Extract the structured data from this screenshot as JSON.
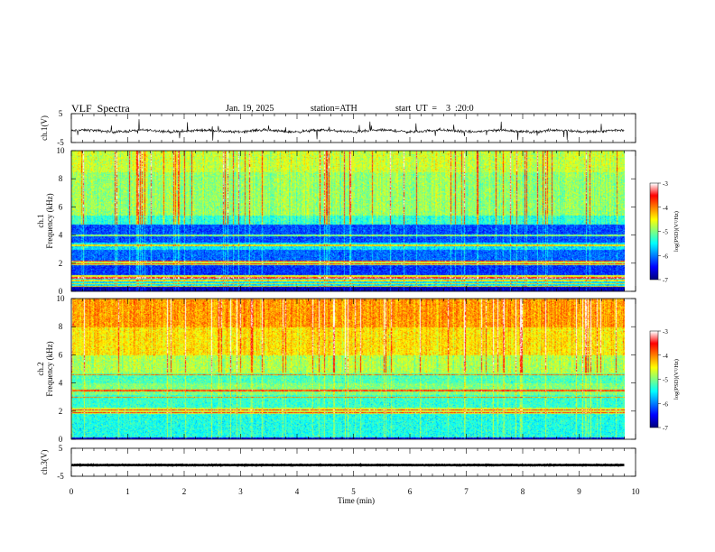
{
  "header": {
    "title": "VLF  Spectra",
    "date": "Jan. 19, 2025",
    "station": "station=ATH",
    "start_ut": "start  UT  =    3  :20:0"
  },
  "colors": {
    "jet": [
      "#000080",
      "#0000ff",
      "#0080ff",
      "#00ffff",
      "#80ff80",
      "#ffff00",
      "#ff8000",
      "#ff0000",
      "#ffffff"
    ],
    "waveform": "#000000",
    "axis": "#000000"
  },
  "chart_data": [
    {
      "type": "line",
      "panel": "ch1-waveform",
      "ylabel": "ch.1(V)",
      "yticks": [
        "5",
        "-5"
      ],
      "ylim": [
        -5,
        5
      ],
      "xlim": [
        0,
        10
      ],
      "trace_extent_min": [
        0,
        9.8
      ],
      "trace_level_V": -1
    },
    {
      "type": "heatmap",
      "panel": "ch1-spectrogram",
      "ylabel": "ch.1\nFrequency (kHz)",
      "ylabel_lines": [
        "ch.1",
        "Frequency  (kHz)"
      ],
      "yticks": [
        "0",
        "2",
        "4",
        "6",
        "8",
        "10"
      ],
      "ylim": [
        0,
        10
      ],
      "xlim": [
        0,
        10
      ],
      "data_extent_min": [
        0,
        9.8
      ],
      "colorbar": {
        "label": "log(PSD)(V²/Hz)",
        "ticks": [
          "-3",
          "-4",
          "-5",
          "-6",
          "-7"
        ],
        "range": [
          -7,
          -3
        ]
      },
      "bands": [
        {
          "from": 0.0,
          "to": 0.35,
          "level": -6.8
        },
        {
          "from": 0.35,
          "to": 0.9,
          "level": -5.6
        },
        {
          "from": 0.9,
          "to": 1.2,
          "level": -4.6
        },
        {
          "from": 1.2,
          "to": 1.9,
          "level": -6.3
        },
        {
          "from": 1.9,
          "to": 2.2,
          "level": -4.8
        },
        {
          "from": 2.2,
          "to": 3.0,
          "level": -6.1
        },
        {
          "from": 3.0,
          "to": 3.5,
          "level": -5.6
        },
        {
          "from": 3.5,
          "to": 4.8,
          "level": -6.2
        },
        {
          "from": 4.8,
          "to": 5.4,
          "level": -5.3
        },
        {
          "from": 5.4,
          "to": 8.5,
          "level": -4.9
        },
        {
          "from": 8.5,
          "to": 10.0,
          "level": -4.7
        }
      ],
      "lines_kHz": [
        0.4,
        0.6,
        0.8,
        1.0,
        2.0,
        2.2,
        3.3,
        4.0
      ]
    },
    {
      "type": "heatmap",
      "panel": "ch2-spectrogram",
      "ylabel": "ch.2\nFrequency (kHz)",
      "ylabel_lines": [
        "ch.2",
        "Frequency  (kHz)"
      ],
      "yticks": [
        "0",
        "2",
        "4",
        "6",
        "8",
        "10"
      ],
      "ylim": [
        0,
        10
      ],
      "xlim": [
        0,
        10
      ],
      "data_extent_min": [
        0,
        9.8
      ],
      "colorbar": {
        "label": "log(PSD)(V²/Hz)",
        "ticks": [
          "-3",
          "-4",
          "-5",
          "-6",
          "-7"
        ],
        "range": [
          -7,
          -3
        ]
      },
      "bands": [
        {
          "from": 0.0,
          "to": 0.2,
          "level": -6.5
        },
        {
          "from": 0.2,
          "to": 1.8,
          "level": -5.4
        },
        {
          "from": 1.8,
          "to": 2.3,
          "level": -4.7
        },
        {
          "from": 2.3,
          "to": 3.2,
          "level": -5.3
        },
        {
          "from": 3.2,
          "to": 4.0,
          "level": -5.0
        },
        {
          "from": 4.0,
          "to": 4.7,
          "level": -5.2
        },
        {
          "from": 4.7,
          "to": 6.0,
          "level": -4.8
        },
        {
          "from": 6.0,
          "to": 8.0,
          "level": -4.4
        },
        {
          "from": 8.0,
          "to": 10.0,
          "level": -4.1
        }
      ],
      "lines_kHz": [
        0.2,
        1.9,
        2.1,
        3.0,
        3.5,
        4.6
      ]
    },
    {
      "type": "line",
      "panel": "ch3-waveform",
      "ylabel": "ch.3(V)",
      "yticks": [
        "5",
        "-5"
      ],
      "ylim": [
        -5,
        5
      ],
      "xlim": [
        0,
        10
      ],
      "xlabel": "Time  (min)",
      "xticks": [
        "0",
        "1",
        "2",
        "3",
        "4",
        "5",
        "6",
        "7",
        "8",
        "9",
        "10"
      ],
      "trace_extent_min": [
        0,
        9.8
      ],
      "trace_level_V": -1
    }
  ]
}
